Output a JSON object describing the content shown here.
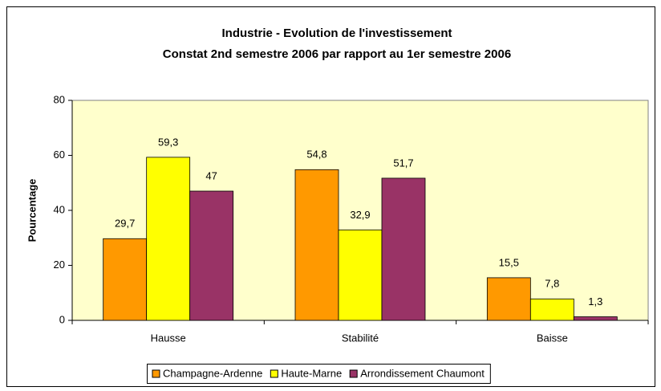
{
  "chart_data": {
    "type": "bar",
    "title": [
      "Industrie - Evolution de l'investissement",
      "Constat 2nd semestre 2006 par rapport au 1er semestre 2006"
    ],
    "y_label": "Pourcentage",
    "categories": [
      "Hausse",
      "Stabilité",
      "Baisse"
    ],
    "series": [
      {
        "name": "Champagne-Ardenne",
        "color": "#FF9900",
        "values": [
          29.7,
          54.8,
          15.5
        ],
        "value_labels": [
          "29,7",
          "54,8",
          "15,5"
        ]
      },
      {
        "name": "Haute-Marne",
        "color": "#FFFF00",
        "values": [
          59.3,
          32.9,
          7.8
        ],
        "value_labels": [
          "59,3",
          "32,9",
          "7,8"
        ]
      },
      {
        "name": "Arrondissement Chaumont",
        "color": "#993366",
        "values": [
          47,
          51.7,
          1.3
        ],
        "value_labels": [
          "47",
          "51,7",
          "1,3"
        ]
      }
    ],
    "ylim": [
      0,
      80
    ],
    "yticks": [
      0,
      20,
      40,
      60,
      80
    ],
    "legend": "bottom",
    "plot_background": "#FFFFCC"
  }
}
